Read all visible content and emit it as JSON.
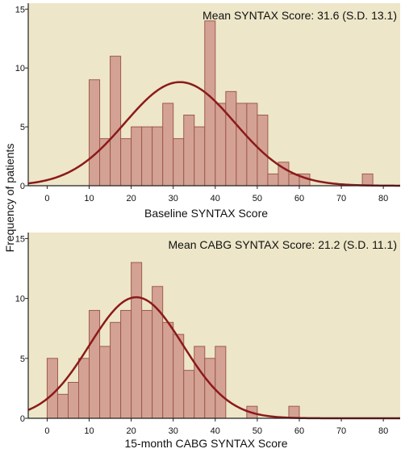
{
  "y_axis_label": "Frequency of patients",
  "colors": {
    "panel_background": "#ede6c8",
    "bar_fill": "#d4a294",
    "bar_stroke": "#9c5a4c",
    "curve": "#8b1a1a",
    "axis": "#222222"
  },
  "chart_data": [
    {
      "type": "bar",
      "subtype": "histogram",
      "xlabel": "Baseline SYNTAX Score",
      "ylabel": "Frequency of patients",
      "annotation": "Mean SYNTAX Score: 31.6 (S.D. 13.1)",
      "xlim": [
        -4.5,
        84
      ],
      "ylim": [
        0,
        15.5
      ],
      "xticks": [
        0,
        10,
        20,
        30,
        40,
        50,
        60,
        70,
        80
      ],
      "yticks": [
        0,
        5,
        10,
        15
      ],
      "bin_width": 2.5,
      "bins": [
        {
          "x": 10,
          "count": 9
        },
        {
          "x": 12.5,
          "count": 4
        },
        {
          "x": 15,
          "count": 11
        },
        {
          "x": 17.5,
          "count": 4
        },
        {
          "x": 20,
          "count": 5
        },
        {
          "x": 22.5,
          "count": 5
        },
        {
          "x": 25,
          "count": 5
        },
        {
          "x": 27.5,
          "count": 7
        },
        {
          "x": 30,
          "count": 4
        },
        {
          "x": 32.5,
          "count": 6
        },
        {
          "x": 35,
          "count": 5
        },
        {
          "x": 37.5,
          "count": 14
        },
        {
          "x": 40,
          "count": 7
        },
        {
          "x": 42.5,
          "count": 8
        },
        {
          "x": 45,
          "count": 7
        },
        {
          "x": 47.5,
          "count": 7
        },
        {
          "x": 50,
          "count": 6
        },
        {
          "x": 52.5,
          "count": 1
        },
        {
          "x": 55,
          "count": 2
        },
        {
          "x": 57.5,
          "count": 1
        },
        {
          "x": 60,
          "count": 1
        },
        {
          "x": 75,
          "count": 1
        }
      ],
      "normal_curve": {
        "mean": 31.6,
        "sd": 13.1,
        "peak": 8.8
      }
    },
    {
      "type": "bar",
      "subtype": "histogram",
      "xlabel": "15-month CABG SYNTAX Score",
      "ylabel": "Frequency of patients",
      "annotation": "Mean CABG SYNTAX Score: 21.2 (S.D. 11.1)",
      "xlim": [
        -4.5,
        84
      ],
      "ylim": [
        0,
        15.5
      ],
      "xticks": [
        0,
        10,
        20,
        30,
        40,
        50,
        60,
        70,
        80
      ],
      "yticks": [
        0,
        5,
        10,
        15
      ],
      "bin_width": 2.5,
      "bins": [
        {
          "x": 0,
          "count": 5
        },
        {
          "x": 2.5,
          "count": 2
        },
        {
          "x": 5,
          "count": 3
        },
        {
          "x": 7.5,
          "count": 5
        },
        {
          "x": 10,
          "count": 9
        },
        {
          "x": 12.5,
          "count": 6
        },
        {
          "x": 15,
          "count": 8
        },
        {
          "x": 17.5,
          "count": 9
        },
        {
          "x": 20,
          "count": 13
        },
        {
          "x": 22.5,
          "count": 9
        },
        {
          "x": 25,
          "count": 11
        },
        {
          "x": 27.5,
          "count": 8
        },
        {
          "x": 30,
          "count": 7
        },
        {
          "x": 32.5,
          "count": 4
        },
        {
          "x": 35,
          "count": 6
        },
        {
          "x": 37.5,
          "count": 5
        },
        {
          "x": 40,
          "count": 6
        },
        {
          "x": 47.5,
          "count": 1
        },
        {
          "x": 57.5,
          "count": 1
        }
      ],
      "normal_curve": {
        "mean": 21.2,
        "sd": 11.1,
        "peak": 10.1
      }
    }
  ]
}
